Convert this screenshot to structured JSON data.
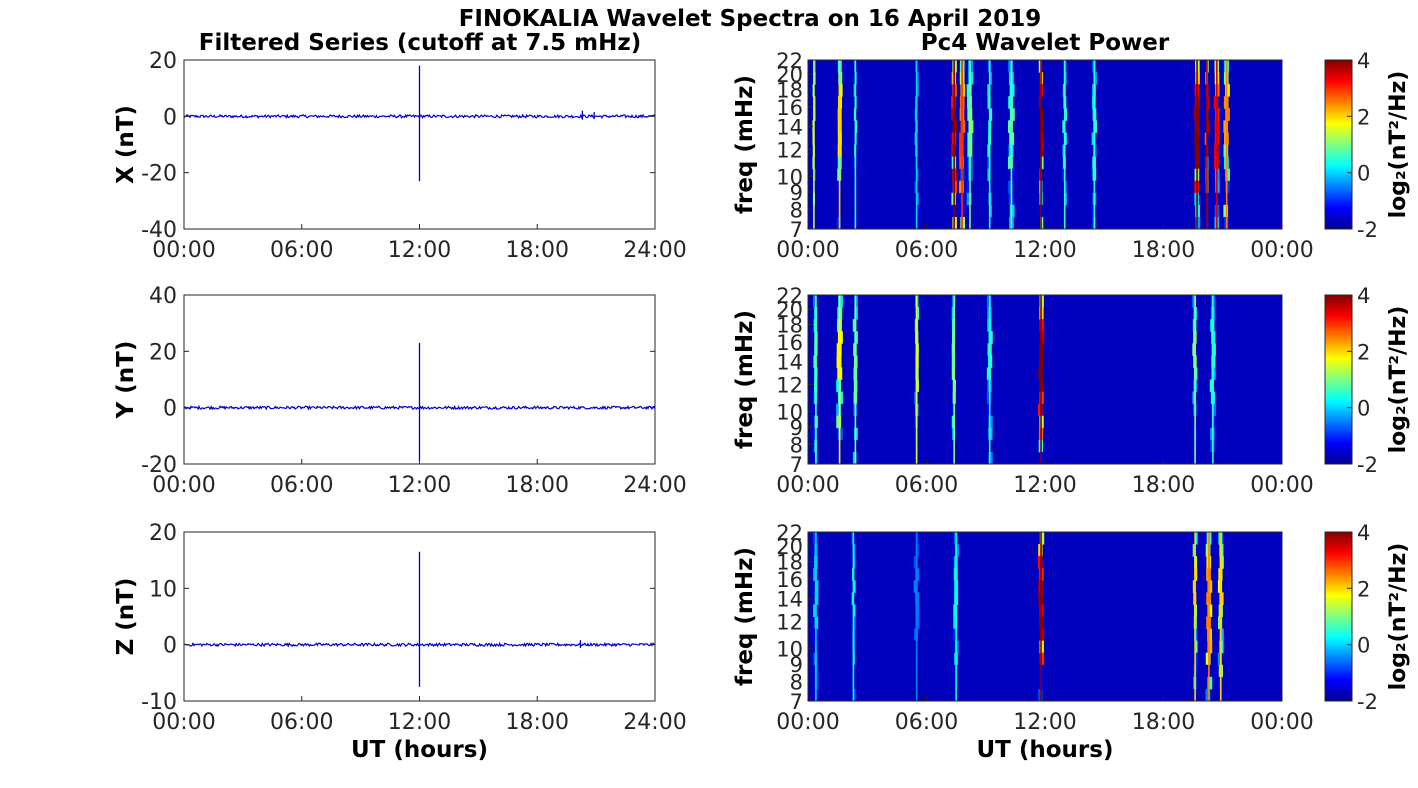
{
  "title": "FINOKALIA Wavelet Spectra on 16 April 2019",
  "left_title": "Filtered Series (cutoff at 7.5 mHz)",
  "right_title": "Pc4 Wavelet Power",
  "colors": {
    "series": "#0000cc",
    "background": "#ffffff"
  },
  "chart_data": [
    {
      "type": "line",
      "panel": "X",
      "ylabel": "X (nT)",
      "xlabel": "",
      "xlim": [
        0,
        24
      ],
      "ylim": [
        -40,
        20
      ],
      "x_ticks": [
        "00:00",
        "06:00",
        "12:00",
        "18:00",
        "24:00"
      ],
      "y_ticks": [
        "20",
        "0",
        "-20",
        "-40"
      ],
      "baseline": 0,
      "noise": 0.5,
      "spikes": [
        {
          "x": 12.0,
          "min": -23,
          "max": 18
        },
        {
          "x": 20.3,
          "min": -1.2,
          "max": 2
        },
        {
          "x": 20.9,
          "min": -1,
          "max": 1.5
        }
      ]
    },
    {
      "type": "heatmap",
      "panel": "X",
      "ylabel": "freq (mHz)",
      "xlabel": "",
      "xlim": [
        0,
        24
      ],
      "ylim": [
        7,
        22
      ],
      "x_ticks": [
        "00:00",
        "06:00",
        "12:00",
        "18:00",
        "00:00"
      ],
      "y_ticks": [
        "22",
        "20",
        "18",
        "16",
        "14",
        "12",
        "10",
        "9",
        "8",
        "7"
      ],
      "colorbar": {
        "label": "log₂(nT²/Hz)",
        "range": [
          -2,
          4
        ],
        "ticks": [
          "4",
          "2",
          "0",
          "-2"
        ]
      },
      "bursts": [
        {
          "t": 0.3,
          "p": 1.5
        },
        {
          "t": 1.6,
          "p": 2.0
        },
        {
          "t": 2.4,
          "p": 0.5
        },
        {
          "t": 5.5,
          "p": 0.0
        },
        {
          "t": 7.4,
          "p": 4.0
        },
        {
          "t": 7.8,
          "p": 3.0
        },
        {
          "t": 8.2,
          "p": 1.0
        },
        {
          "t": 9.2,
          "p": 0.5
        },
        {
          "t": 10.3,
          "p": 0.8
        },
        {
          "t": 11.8,
          "p": 4.0
        },
        {
          "t": 13.0,
          "p": 0.5
        },
        {
          "t": 14.5,
          "p": 0.5
        },
        {
          "t": 19.7,
          "p": 4.0
        },
        {
          "t": 20.2,
          "p": 3.8
        },
        {
          "t": 20.7,
          "p": 3.5
        },
        {
          "t": 21.2,
          "p": 2.5
        }
      ]
    },
    {
      "type": "line",
      "panel": "Y",
      "ylabel": "Y (nT)",
      "xlabel": "",
      "xlim": [
        0,
        24
      ],
      "ylim": [
        -20,
        40
      ],
      "x_ticks": [
        "00:00",
        "06:00",
        "12:00",
        "18:00",
        "24:00"
      ],
      "y_ticks": [
        "40",
        "20",
        "0",
        "-20"
      ],
      "baseline": 0,
      "noise": 0.5,
      "spikes": [
        {
          "x": 12.0,
          "min": -19,
          "max": 23
        }
      ]
    },
    {
      "type": "heatmap",
      "panel": "Y",
      "ylabel": "freq (mHz)",
      "xlabel": "",
      "xlim": [
        0,
        24
      ],
      "ylim": [
        7,
        22
      ],
      "x_ticks": [
        "00:00",
        "06:00",
        "12:00",
        "18:00",
        "00:00"
      ],
      "y_ticks": [
        "22",
        "20",
        "18",
        "16",
        "14",
        "12",
        "10",
        "9",
        "8",
        "7"
      ],
      "colorbar": {
        "label": "log₂(nT²/Hz)",
        "range": [
          -2,
          4
        ],
        "ticks": [
          "4",
          "2",
          "0",
          "-2"
        ]
      },
      "bursts": [
        {
          "t": 0.4,
          "p": 0.8
        },
        {
          "t": 1.6,
          "p": 1.8
        },
        {
          "t": 2.4,
          "p": 1.0
        },
        {
          "t": 5.5,
          "p": 1.5
        },
        {
          "t": 7.4,
          "p": 1.0
        },
        {
          "t": 9.2,
          "p": 0.5
        },
        {
          "t": 11.8,
          "p": 4.0
        },
        {
          "t": 19.6,
          "p": 1.0
        },
        {
          "t": 20.5,
          "p": 0.5
        }
      ]
    },
    {
      "type": "line",
      "panel": "Z",
      "ylabel": "Z (nT)",
      "xlabel": "UT (hours)",
      "xlim": [
        0,
        24
      ],
      "ylim": [
        -10,
        20
      ],
      "x_ticks": [
        "00:00",
        "06:00",
        "12:00",
        "18:00",
        "24:00"
      ],
      "y_ticks": [
        "20",
        "10",
        "0",
        "-10"
      ],
      "baseline": 0,
      "noise": 0.25,
      "spikes": [
        {
          "x": 12.0,
          "min": -7.5,
          "max": 16.5
        },
        {
          "x": 20.2,
          "min": -0.6,
          "max": 0.8
        }
      ]
    },
    {
      "type": "heatmap",
      "panel": "Z",
      "ylabel": "freq (mHz)",
      "xlabel": "UT (hours)",
      "xlim": [
        0,
        24
      ],
      "ylim": [
        7,
        22
      ],
      "x_ticks": [
        "00:00",
        "06:00",
        "12:00",
        "18:00",
        "00:00"
      ],
      "y_ticks": [
        "22",
        "20",
        "18",
        "16",
        "14",
        "12",
        "10",
        "9",
        "8",
        "7"
      ],
      "colorbar": {
        "label": "log₂(nT²/Hz)",
        "range": [
          -2,
          4
        ],
        "ticks": [
          "4",
          "2",
          "0",
          "-2"
        ]
      },
      "bursts": [
        {
          "t": 0.4,
          "p": 0.0
        },
        {
          "t": 2.3,
          "p": 0.3
        },
        {
          "t": 5.5,
          "p": -0.5
        },
        {
          "t": 7.5,
          "p": 0.3
        },
        {
          "t": 11.8,
          "p": 4.0
        },
        {
          "t": 19.6,
          "p": 2.0
        },
        {
          "t": 20.3,
          "p": 2.5
        },
        {
          "t": 20.9,
          "p": 2.0
        }
      ]
    }
  ]
}
